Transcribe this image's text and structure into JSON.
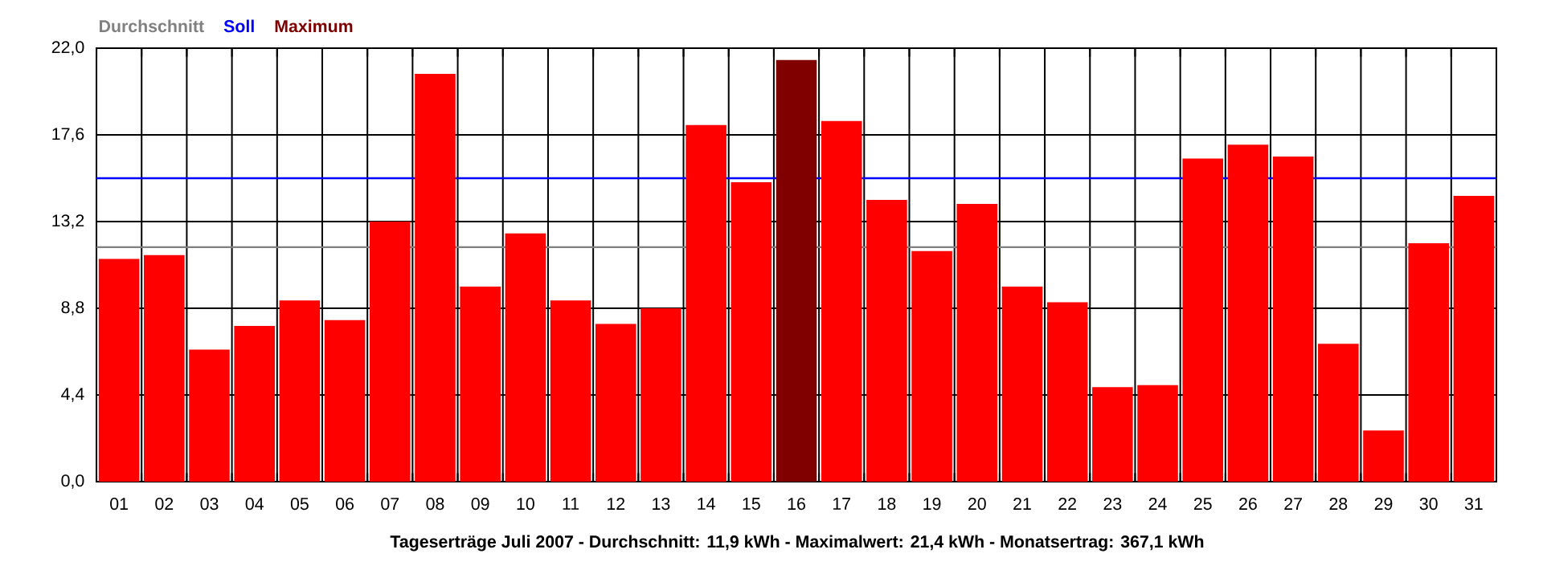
{
  "chart_data": {
    "type": "bar",
    "title": "Tageserträge Juli 2007 - Durchschnitt: 11,9 kWh - Maximalwert: 21,4 kWh - Monatsertrag: 367,1 kWh",
    "categories": [
      "01",
      "02",
      "03",
      "04",
      "05",
      "06",
      "07",
      "08",
      "09",
      "10",
      "11",
      "12",
      "13",
      "14",
      "15",
      "16",
      "17",
      "18",
      "19",
      "20",
      "21",
      "22",
      "23",
      "24",
      "25",
      "26",
      "27",
      "28",
      "29",
      "30",
      "31"
    ],
    "series": [
      {
        "color": "#ff0000",
        "values": [
          11.3,
          11.5,
          6.7,
          7.9,
          9.2,
          8.2,
          13.2,
          20.7,
          9.9,
          12.6,
          9.2,
          8.0,
          8.8,
          18.1,
          15.2,
          null,
          18.3,
          14.3,
          11.7,
          14.1,
          9.9,
          9.1,
          4.8,
          4.9,
          16.4,
          17.1,
          16.5,
          7.0,
          2.6,
          12.1,
          14.5
        ]
      },
      {
        "name": "Maximum",
        "color": "#800000",
        "values": [
          null,
          null,
          null,
          null,
          null,
          null,
          null,
          null,
          null,
          null,
          null,
          null,
          null,
          null,
          null,
          21.4,
          null,
          null,
          null,
          null,
          null,
          null,
          null,
          null,
          null,
          null,
          null,
          null,
          null,
          null,
          null
        ]
      }
    ],
    "ylim": [
      0,
      22
    ],
    "yticks": [
      {
        "value": 0,
        "label": "0,0"
      },
      {
        "value": 4.4,
        "label": "4,4"
      },
      {
        "value": 8.8,
        "label": "8,8"
      },
      {
        "value": 13.2,
        "label": "13,2"
      },
      {
        "value": 17.6,
        "label": "17,6"
      },
      {
        "value": 22,
        "label": "22,0"
      }
    ],
    "ref_lines": [
      {
        "axis": "y",
        "value": 11.9,
        "label": "Durchschnitt",
        "color": "#808080"
      },
      {
        "axis": "y",
        "value": 15.4,
        "label": "Soll",
        "color": "#0000ff"
      }
    ],
    "grid": true,
    "legend": "top left"
  }
}
